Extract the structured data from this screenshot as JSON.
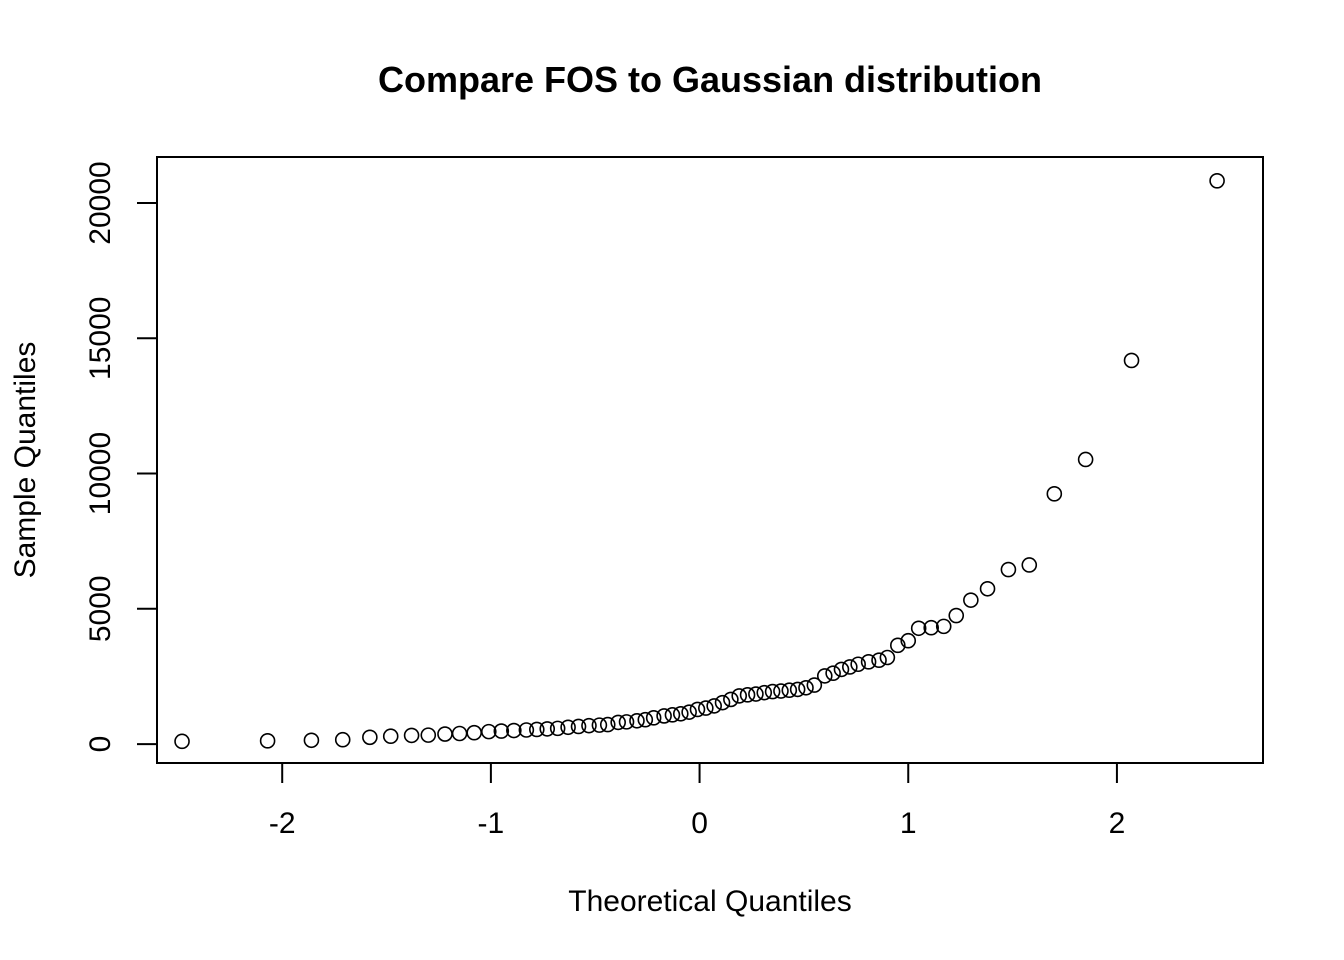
{
  "chart_data": {
    "type": "scatter",
    "title": "Compare FOS to Gaussian distribution",
    "xlabel": "Theoretical Quantiles",
    "ylabel": "Sample Quantiles",
    "xlim": [
      -2.6,
      2.7
    ],
    "ylim": [
      -700,
      21700
    ],
    "x_ticks": [
      -2,
      -1,
      0,
      1,
      2
    ],
    "y_ticks": [
      0,
      5000,
      10000,
      15000,
      20000
    ],
    "grid": false,
    "legend": "none",
    "marker": "open-circle",
    "color": "#000000",
    "points": [
      [
        -2.48,
        100
      ],
      [
        -2.07,
        120
      ],
      [
        -1.86,
        140
      ],
      [
        -1.71,
        160
      ],
      [
        -1.58,
        250
      ],
      [
        -1.48,
        290
      ],
      [
        -1.38,
        320
      ],
      [
        -1.3,
        330
      ],
      [
        -1.22,
        370
      ],
      [
        -1.15,
        390
      ],
      [
        -1.08,
        420
      ],
      [
        -1.01,
        460
      ],
      [
        -0.95,
        480
      ],
      [
        -0.89,
        500
      ],
      [
        -0.83,
        520
      ],
      [
        -0.78,
        540
      ],
      [
        -0.73,
        560
      ],
      [
        -0.68,
        580
      ],
      [
        -0.63,
        620
      ],
      [
        -0.58,
        650
      ],
      [
        -0.53,
        680
      ],
      [
        -0.48,
        700
      ],
      [
        -0.44,
        720
      ],
      [
        -0.39,
        800
      ],
      [
        -0.35,
        820
      ],
      [
        -0.3,
        860
      ],
      [
        -0.26,
        900
      ],
      [
        -0.22,
        970
      ],
      [
        -0.17,
        1040
      ],
      [
        -0.13,
        1080
      ],
      [
        -0.09,
        1120
      ],
      [
        -0.05,
        1180
      ],
      [
        -0.01,
        1280
      ],
      [
        0.03,
        1330
      ],
      [
        0.07,
        1410
      ],
      [
        0.11,
        1530
      ],
      [
        0.15,
        1650
      ],
      [
        0.19,
        1780
      ],
      [
        0.23,
        1820
      ],
      [
        0.27,
        1850
      ],
      [
        0.31,
        1900
      ],
      [
        0.35,
        1940
      ],
      [
        0.39,
        1960
      ],
      [
        0.43,
        1990
      ],
      [
        0.47,
        2020
      ],
      [
        0.51,
        2080
      ],
      [
        0.55,
        2180
      ],
      [
        0.6,
        2520
      ],
      [
        0.64,
        2620
      ],
      [
        0.68,
        2760
      ],
      [
        0.72,
        2850
      ],
      [
        0.76,
        2950
      ],
      [
        0.81,
        3040
      ],
      [
        0.86,
        3100
      ],
      [
        0.9,
        3200
      ],
      [
        0.95,
        3650
      ],
      [
        1.0,
        3820
      ],
      [
        1.05,
        4280
      ],
      [
        1.11,
        4300
      ],
      [
        1.17,
        4350
      ],
      [
        1.23,
        4750
      ],
      [
        1.3,
        5320
      ],
      [
        1.38,
        5740
      ],
      [
        1.48,
        6450
      ],
      [
        1.58,
        6620
      ],
      [
        1.7,
        9250
      ],
      [
        1.85,
        10520
      ],
      [
        2.07,
        14180
      ],
      [
        2.48,
        20820
      ]
    ]
  }
}
